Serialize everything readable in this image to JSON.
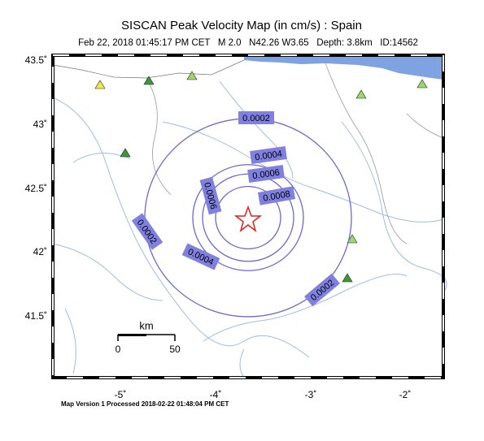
{
  "header": {
    "title": "SISCAN Peak Velocity Map (in cm/s) : Spain",
    "subtitle": "Feb 22, 2018 01:45:17 PM CET   M 2.0   N42.26 W3.65   Depth: 3.8km   ID:14562"
  },
  "map": {
    "lat_labels": [
      "43.5˚",
      "43˚",
      "42.5˚",
      "42˚",
      "41.5˚"
    ],
    "lon_labels": [
      "-5˚",
      "-4˚",
      "-3˚",
      "-2˚"
    ],
    "contour_labels": [
      0.0002,
      0.0004,
      0.0006,
      0.0008,
      0.0006,
      0.0002,
      0.0004,
      0.0002
    ],
    "scale_bar": {
      "unit": "km",
      "start": "0",
      "end": "50"
    }
  },
  "footer": {
    "text": "Map Version 1 Processed 2018-02-22 01:48:04 PM CET"
  }
}
